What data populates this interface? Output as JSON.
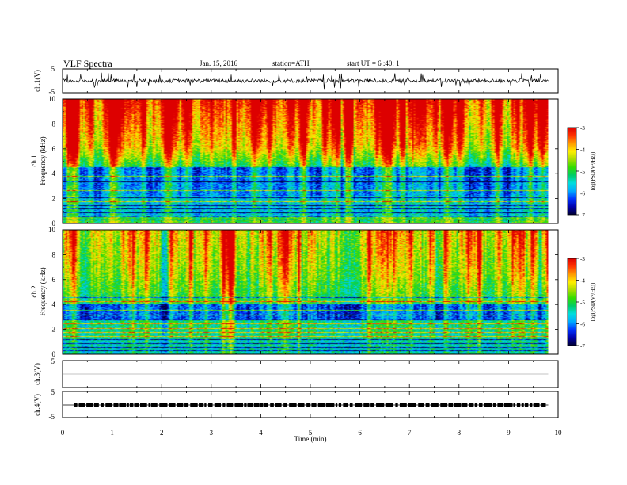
{
  "header": {
    "title": "VLF  Spectra",
    "date": "Jan. 15, 2016",
    "station": "station=ATH",
    "start": "start  UT =   6  :40: 1"
  },
  "colors": {
    "spectrogram_palette": [
      "#000033",
      "#0000aa",
      "#0033ff",
      "#00aaff",
      "#00dddd",
      "#00cc66",
      "#33dd00",
      "#aadd00",
      "#ffee00",
      "#ff9900",
      "#ff3300",
      "#dd0000"
    ],
    "trace": "#000000",
    "frame": "#000000"
  },
  "chart_data": [
    {
      "type": "line",
      "name": "ch1-waveform",
      "ylabel": "ch.1(V)",
      "ylim": [
        -5,
        5
      ],
      "yticks": [
        "5",
        "-5"
      ],
      "baseline": 0,
      "noise_amplitude": 0.8,
      "spike_amplitude": 3.5
    },
    {
      "type": "heatmap",
      "name": "ch1-spectrogram",
      "ylabel_lines": [
        "ch.1",
        "Frequency  (kHz)"
      ],
      "ylim": [
        0,
        10
      ],
      "yticks": [
        "0",
        "2",
        "4",
        "6",
        "8",
        "10"
      ],
      "colorbar": {
        "range": [
          -7,
          -3
        ],
        "ticks": [
          "-3",
          "-4",
          "-5",
          "-6",
          "-7"
        ],
        "label": "log(PSD(V²/Hz))"
      }
    },
    {
      "type": "heatmap",
      "name": "ch2-spectrogram",
      "ylabel_lines": [
        "ch.2",
        "Frequency  (kHz)"
      ],
      "ylim": [
        0,
        10
      ],
      "yticks": [
        "0",
        "2",
        "4",
        "6",
        "8",
        "10"
      ],
      "colorbar": {
        "range": [
          -7,
          -3
        ],
        "ticks": [
          "-3",
          "-4",
          "-5",
          "-6",
          "-7"
        ],
        "label": "log(PSD(V²/Hz))"
      }
    },
    {
      "type": "line",
      "name": "ch3-waveform",
      "ylabel": "ch.3(V)",
      "ylim": [
        -5,
        5
      ],
      "yticks": [
        "5"
      ],
      "baseline": 0
    },
    {
      "type": "line",
      "name": "ch4-waveform",
      "ylabel": "ch.4(V)",
      "ylim": [
        -5,
        5
      ],
      "yticks": [
        "5",
        "-5"
      ],
      "baseline": 0
    }
  ],
  "xaxis": {
    "label": "Time  (min)",
    "range": [
      0,
      10
    ],
    "data_end": 9.8,
    "ticks": [
      "0",
      "1",
      "2",
      "3",
      "4",
      "5",
      "6",
      "7",
      "8",
      "9",
      "10"
    ]
  }
}
